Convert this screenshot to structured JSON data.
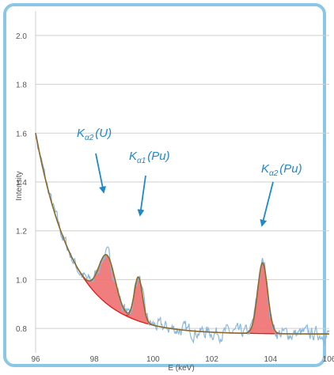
{
  "chart_data": {
    "type": "line",
    "xlabel": "E (keV)",
    "ylabel": "Intensity",
    "xlim": [
      96,
      106
    ],
    "ylim": [
      0.7,
      2.1
    ],
    "x_ticks": [
      "96",
      "98",
      "100",
      "102",
      "104",
      "106"
    ],
    "y_ticks": [
      "0.8",
      "1.0",
      "1.2",
      "1.4",
      "1.6",
      "1.8",
      "2.0"
    ],
    "grid": "horizontal",
    "colors": {
      "data": "#8ab8dc",
      "fit": "#8a6a28",
      "peak_fill": "#f07070",
      "peak_edge": "#d62020",
      "annotation": "#1e88c8",
      "frame": "#8ac6e6"
    },
    "background": {
      "type": "exponential",
      "a": 0.777,
      "b": 0.823,
      "k": 0.78,
      "x0": 96
    },
    "peaks": [
      {
        "center": 98.43,
        "height": 0.2,
        "width": 0.28
      },
      {
        "center": 99.5,
        "height": 0.18,
        "width": 0.14
      },
      {
        "center": 103.73,
        "height": 0.29,
        "width": 0.17
      }
    ],
    "annotations": [
      {
        "base": "K",
        "sub": "α2",
        "element": "U",
        "x": 98.3,
        "y": 1.33
      },
      {
        "base": "K",
        "sub": "α1",
        "element": "Pu",
        "x": 99.4,
        "y": 1.25
      },
      {
        "base": "K",
        "sub": "α2",
        "element": "Pu",
        "x": 103.7,
        "y": 1.19
      }
    ]
  }
}
